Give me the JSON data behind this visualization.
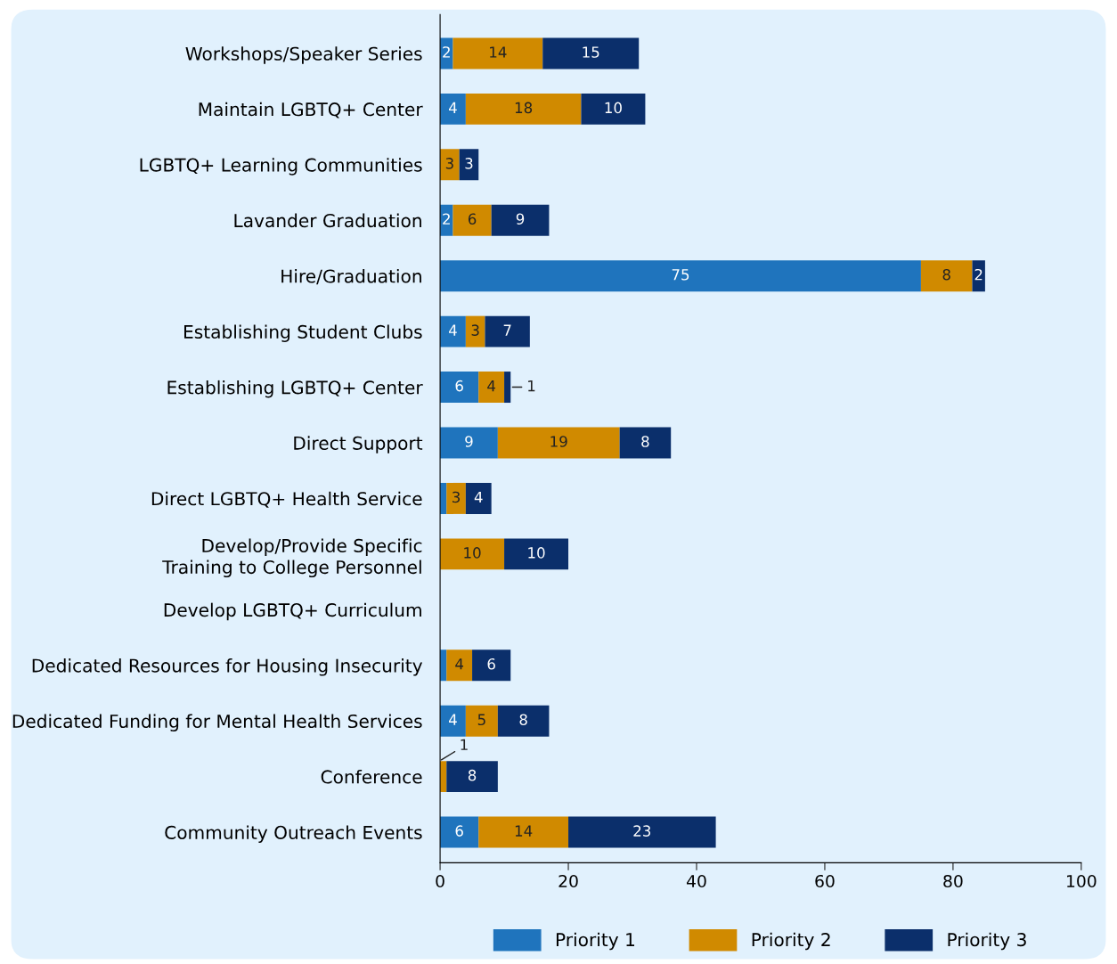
{
  "chart_data": {
    "type": "bar",
    "orientation": "horizontal",
    "stacked": true,
    "categories": [
      "Workshops/Speaker Series",
      "Maintain LGBTQ+ Center",
      "LGBTQ+ Learning Communities",
      "Lavander Graduation",
      "Hire/Graduation",
      "Establishing Student Clubs",
      "Establishing LGBTQ+ Center",
      "Direct Support",
      "Direct LGBTQ+ Health Service",
      "Develop/Provide Specific\nTraining to College Personnel",
      "Develop LGBTQ+ Curriculum",
      "Dedicated Resources for Housing Insecurity",
      "Dedicated Funding for Mental Health Services",
      "Conference",
      "Community Outreach Events"
    ],
    "series": [
      {
        "name": "Priority 1",
        "color": "#1f74bd",
        "values": [
          2,
          4,
          null,
          2,
          75,
          4,
          6,
          9,
          1,
          null,
          null,
          1,
          4,
          null,
          6
        ],
        "value_labels": [
          "2",
          "4",
          null,
          "2",
          "75",
          "4",
          "6",
          "9",
          null,
          null,
          null,
          null,
          "4",
          null,
          "6"
        ]
      },
      {
        "name": "Priority 2",
        "color": "#d08a00",
        "values": [
          14,
          18,
          3,
          6,
          8,
          3,
          4,
          19,
          3,
          10,
          null,
          4,
          5,
          1,
          14
        ],
        "value_labels": [
          "14",
          "18",
          "3",
          "6",
          "8",
          "3",
          "4",
          "19",
          "3",
          "10",
          null,
          "4",
          "5",
          "1",
          "14"
        ]
      },
      {
        "name": "Priority 3",
        "color": "#0b2f6b",
        "values": [
          15,
          10,
          3,
          9,
          2,
          7,
          1,
          8,
          4,
          10,
          null,
          6,
          8,
          8,
          23
        ],
        "value_labels": [
          "15",
          "10",
          "3",
          "9",
          "2",
          "7",
          "1",
          "8",
          "4",
          "10",
          null,
          "6",
          "8",
          "8",
          "23"
        ]
      }
    ],
    "xlim": [
      0,
      100
    ],
    "xticks": [
      0,
      20,
      40,
      60,
      80,
      100
    ],
    "grid": false,
    "legend": "bottom"
  }
}
